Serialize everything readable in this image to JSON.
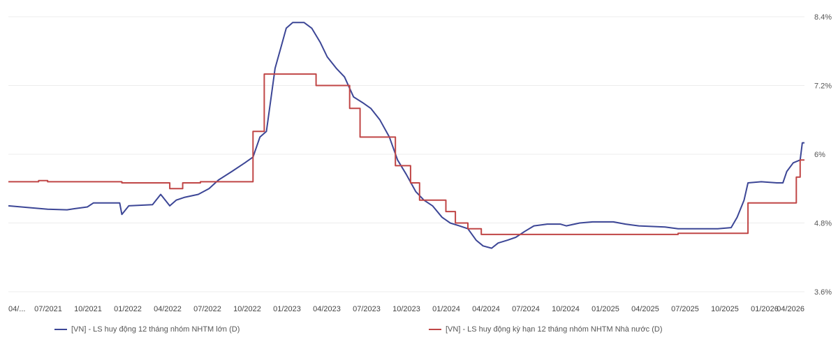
{
  "chart_data": {
    "type": "line",
    "y_axis_side": "right",
    "ylim": [
      3.6,
      8.4
    ],
    "y_ticks": [
      "8.4%",
      "7.2%",
      "6%",
      "4.8%",
      "3.6%"
    ],
    "x_range": [
      "2021-04-01",
      "2026-04-20"
    ],
    "x_ticks": [
      "04/...",
      "07/2021",
      "10/2021",
      "01/2022",
      "04/2022",
      "07/2022",
      "10/2022",
      "01/2023",
      "04/2023",
      "07/2023",
      "10/2023",
      "01/2024",
      "04/2024",
      "07/2024",
      "10/2024",
      "01/2025",
      "04/2025",
      "07/2025",
      "10/2025",
      "01/2026",
      "04/2026"
    ],
    "grid": true,
    "legend_position": "bottom",
    "series": [
      {
        "name": "[VN] - LS huy động 12 tháng nhóm NHTM lớn (D)",
        "color": "#3c4696",
        "points": [
          [
            "2021-04-01",
            5.1
          ],
          [
            "2021-05-15",
            5.07
          ],
          [
            "2021-07-01",
            5.04
          ],
          [
            "2021-08-15",
            5.03
          ],
          [
            "2021-09-01",
            5.05
          ],
          [
            "2021-10-01",
            5.08
          ],
          [
            "2021-10-15",
            5.15
          ],
          [
            "2021-12-15",
            5.15
          ],
          [
            "2021-12-20",
            4.95
          ],
          [
            "2022-01-05",
            5.1
          ],
          [
            "2022-03-01",
            5.12
          ],
          [
            "2022-03-20",
            5.3
          ],
          [
            "2022-04-10",
            5.1
          ],
          [
            "2022-04-25",
            5.2
          ],
          [
            "2022-05-15",
            5.25
          ],
          [
            "2022-06-15",
            5.3
          ],
          [
            "2022-07-10",
            5.4
          ],
          [
            "2022-08-01",
            5.55
          ],
          [
            "2022-09-01",
            5.7
          ],
          [
            "2022-10-01",
            5.85
          ],
          [
            "2022-10-20",
            5.95
          ],
          [
            "2022-11-05",
            6.3
          ],
          [
            "2022-11-20",
            6.4
          ],
          [
            "2022-12-01",
            7.0
          ],
          [
            "2022-12-10",
            7.5
          ],
          [
            "2022-12-25",
            7.9
          ],
          [
            "2023-01-05",
            8.2
          ],
          [
            "2023-01-20",
            8.3
          ],
          [
            "2023-02-15",
            8.3
          ],
          [
            "2023-03-05",
            8.2
          ],
          [
            "2023-03-25",
            7.95
          ],
          [
            "2023-04-10",
            7.7
          ],
          [
            "2023-05-01",
            7.5
          ],
          [
            "2023-05-20",
            7.35
          ],
          [
            "2023-06-10",
            7.0
          ],
          [
            "2023-07-01",
            6.9
          ],
          [
            "2023-07-20",
            6.8
          ],
          [
            "2023-08-10",
            6.6
          ],
          [
            "2023-09-01",
            6.3
          ],
          [
            "2023-09-20",
            5.9
          ],
          [
            "2023-10-10",
            5.65
          ],
          [
            "2023-11-01",
            5.35
          ],
          [
            "2023-11-20",
            5.2
          ],
          [
            "2023-12-10",
            5.1
          ],
          [
            "2024-01-01",
            4.9
          ],
          [
            "2024-01-20",
            4.8
          ],
          [
            "2024-02-10",
            4.75
          ],
          [
            "2024-03-01",
            4.7
          ],
          [
            "2024-03-20",
            4.5
          ],
          [
            "2024-04-05",
            4.4
          ],
          [
            "2024-04-25",
            4.36
          ],
          [
            "2024-05-10",
            4.45
          ],
          [
            "2024-06-01",
            4.5
          ],
          [
            "2024-06-20",
            4.55
          ],
          [
            "2024-07-10",
            4.65
          ],
          [
            "2024-08-01",
            4.75
          ],
          [
            "2024-09-01",
            4.78
          ],
          [
            "2024-10-01",
            4.78
          ],
          [
            "2024-10-15",
            4.75
          ],
          [
            "2024-11-15",
            4.8
          ],
          [
            "2024-12-15",
            4.82
          ],
          [
            "2025-02-01",
            4.82
          ],
          [
            "2025-03-01",
            4.78
          ],
          [
            "2025-04-01",
            4.75
          ],
          [
            "2025-06-01",
            4.73
          ],
          [
            "2025-07-01",
            4.7
          ],
          [
            "2025-09-01",
            4.7
          ],
          [
            "2025-10-01",
            4.7
          ],
          [
            "2025-11-01",
            4.72
          ],
          [
            "2025-11-15",
            4.9
          ],
          [
            "2025-12-01",
            5.2
          ],
          [
            "2025-12-10",
            5.5
          ],
          [
            "2026-01-10",
            5.52
          ],
          [
            "2026-02-15",
            5.5
          ],
          [
            "2026-03-01",
            5.5
          ],
          [
            "2026-03-10",
            5.7
          ],
          [
            "2026-03-25",
            5.85
          ],
          [
            "2026-04-10",
            5.9
          ],
          [
            "2026-04-15",
            6.2
          ],
          [
            "2026-04-20",
            6.2
          ]
        ]
      },
      {
        "name": "[VN] - LS huy động kỳ hạn 12 tháng nhóm NHTM Nhà nước (D)",
        "color": "#c04646",
        "points": [
          [
            "2021-04-01",
            5.52
          ],
          [
            "2021-06-10",
            5.52
          ],
          [
            "2021-06-10",
            5.54
          ],
          [
            "2021-07-01",
            5.54
          ],
          [
            "2021-07-01",
            5.52
          ],
          [
            "2021-12-20",
            5.52
          ],
          [
            "2021-12-20",
            5.5
          ],
          [
            "2022-04-10",
            5.5
          ],
          [
            "2022-04-10",
            5.4
          ],
          [
            "2022-05-10",
            5.4
          ],
          [
            "2022-05-10",
            5.5
          ],
          [
            "2022-06-20",
            5.5
          ],
          [
            "2022-06-20",
            5.52
          ],
          [
            "2022-10-20",
            5.52
          ],
          [
            "2022-10-20",
            6.4
          ],
          [
            "2022-11-15",
            6.4
          ],
          [
            "2022-11-15",
            7.4
          ],
          [
            "2023-03-15",
            7.4
          ],
          [
            "2023-03-15",
            7.2
          ],
          [
            "2023-06-01",
            7.2
          ],
          [
            "2023-06-01",
            6.8
          ],
          [
            "2023-06-25",
            6.8
          ],
          [
            "2023-06-25",
            6.3
          ],
          [
            "2023-09-15",
            6.3
          ],
          [
            "2023-09-15",
            5.8
          ],
          [
            "2023-10-20",
            5.8
          ],
          [
            "2023-10-20",
            5.5
          ],
          [
            "2023-11-10",
            5.5
          ],
          [
            "2023-11-10",
            5.2
          ],
          [
            "2024-01-10",
            5.2
          ],
          [
            "2024-01-10",
            5.0
          ],
          [
            "2024-02-01",
            5.0
          ],
          [
            "2024-02-01",
            4.8
          ],
          [
            "2024-03-01",
            4.8
          ],
          [
            "2024-03-01",
            4.7
          ],
          [
            "2024-04-01",
            4.7
          ],
          [
            "2024-04-01",
            4.6
          ],
          [
            "2025-07-01",
            4.6
          ],
          [
            "2025-07-01",
            4.62
          ],
          [
            "2025-12-10",
            4.62
          ],
          [
            "2025-12-10",
            5.15
          ],
          [
            "2026-04-01",
            5.15
          ],
          [
            "2026-04-01",
            5.6
          ],
          [
            "2026-04-10",
            5.6
          ],
          [
            "2026-04-10",
            5.9
          ],
          [
            "2026-04-20",
            5.9
          ]
        ]
      }
    ]
  }
}
